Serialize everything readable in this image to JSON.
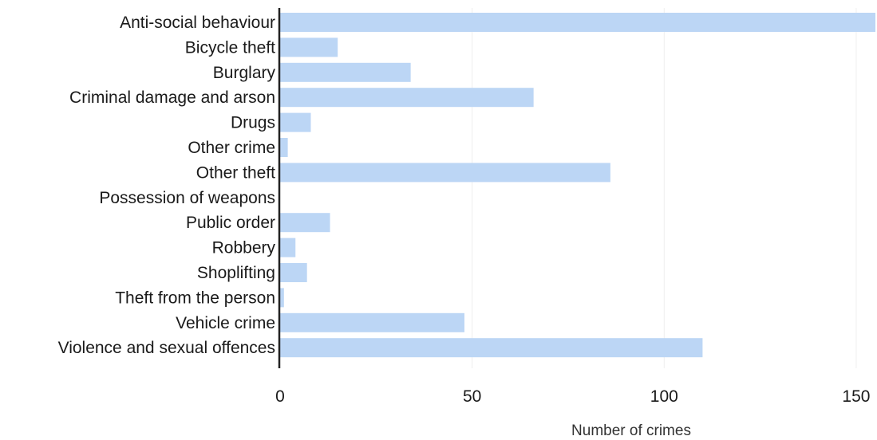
{
  "chart_data": {
    "type": "bar",
    "orientation": "horizontal",
    "categories": [
      "Anti-social behaviour",
      "Bicycle theft",
      "Burglary",
      "Criminal damage and arson",
      "Drugs",
      "Other crime",
      "Other theft",
      "Possession of weapons",
      "Public order",
      "Robbery",
      "Shoplifting",
      "Theft from the person",
      "Vehicle crime",
      "Violence and sexual offences"
    ],
    "values": [
      155,
      15,
      34,
      66,
      8,
      2,
      86,
      0,
      13,
      4,
      7,
      1,
      48,
      110
    ],
    "xlabel": "Number of crimes",
    "ylabel": "",
    "xlim": [
      0,
      155
    ],
    "xticks": [
      "0",
      "50",
      "100",
      "150"
    ],
    "xtick_values": [
      0,
      50,
      100,
      150
    ],
    "grid": true,
    "legend": "none",
    "bar_color": "#bcd6f5",
    "grid_color": "#eeeeee",
    "axis_color": "#222222"
  }
}
